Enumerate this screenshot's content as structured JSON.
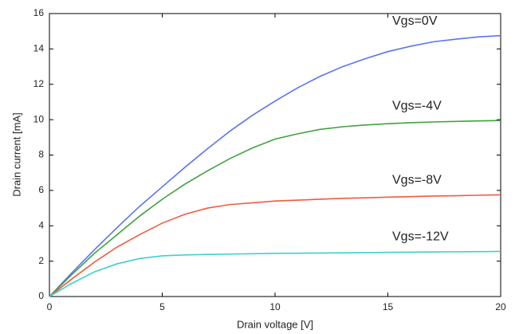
{
  "chart_data": {
    "type": "line",
    "xlabel": "Drain voltage [V]",
    "ylabel": "Drain current [mA]",
    "x": [
      0,
      1,
      2,
      3,
      4,
      5,
      6,
      7,
      8,
      9,
      10,
      11,
      12,
      13,
      14,
      15,
      16,
      17,
      18,
      19,
      20
    ],
    "series": [
      {
        "name": "Vgs=0V",
        "color": "#5b73f2",
        "values": [
          0,
          1.35,
          2.65,
          3.9,
          5.1,
          6.2,
          7.3,
          8.35,
          9.35,
          10.25,
          11.05,
          11.8,
          12.45,
          13.0,
          13.45,
          13.85,
          14.15,
          14.4,
          14.55,
          14.68,
          14.75
        ]
      },
      {
        "name": "Vgs=-4V",
        "color": "#3ea33e",
        "values": [
          0,
          1.25,
          2.45,
          3.5,
          4.55,
          5.5,
          6.35,
          7.1,
          7.8,
          8.4,
          8.9,
          9.2,
          9.45,
          9.6,
          9.7,
          9.77,
          9.83,
          9.87,
          9.9,
          9.93,
          9.95
        ]
      },
      {
        "name": "Vgs=-8V",
        "color": "#f25a3e",
        "values": [
          0,
          1.0,
          1.95,
          2.8,
          3.5,
          4.15,
          4.65,
          5.0,
          5.2,
          5.3,
          5.4,
          5.45,
          5.5,
          5.55,
          5.58,
          5.62,
          5.65,
          5.68,
          5.7,
          5.73,
          5.75
        ]
      },
      {
        "name": "Vgs=-12V",
        "color": "#3fcfcf",
        "values": [
          0,
          0.75,
          1.4,
          1.85,
          2.15,
          2.3,
          2.35,
          2.38,
          2.4,
          2.42,
          2.44,
          2.45,
          2.46,
          2.47,
          2.48,
          2.5,
          2.51,
          2.52,
          2.53,
          2.54,
          2.55
        ]
      }
    ],
    "xlim": [
      0,
      20
    ],
    "xticks": [
      0,
      5,
      10,
      15,
      20
    ],
    "ylim": [
      0,
      16
    ],
    "yticks": [
      0,
      2,
      4,
      6,
      8,
      10,
      12,
      14,
      16
    ],
    "grid": false
  }
}
